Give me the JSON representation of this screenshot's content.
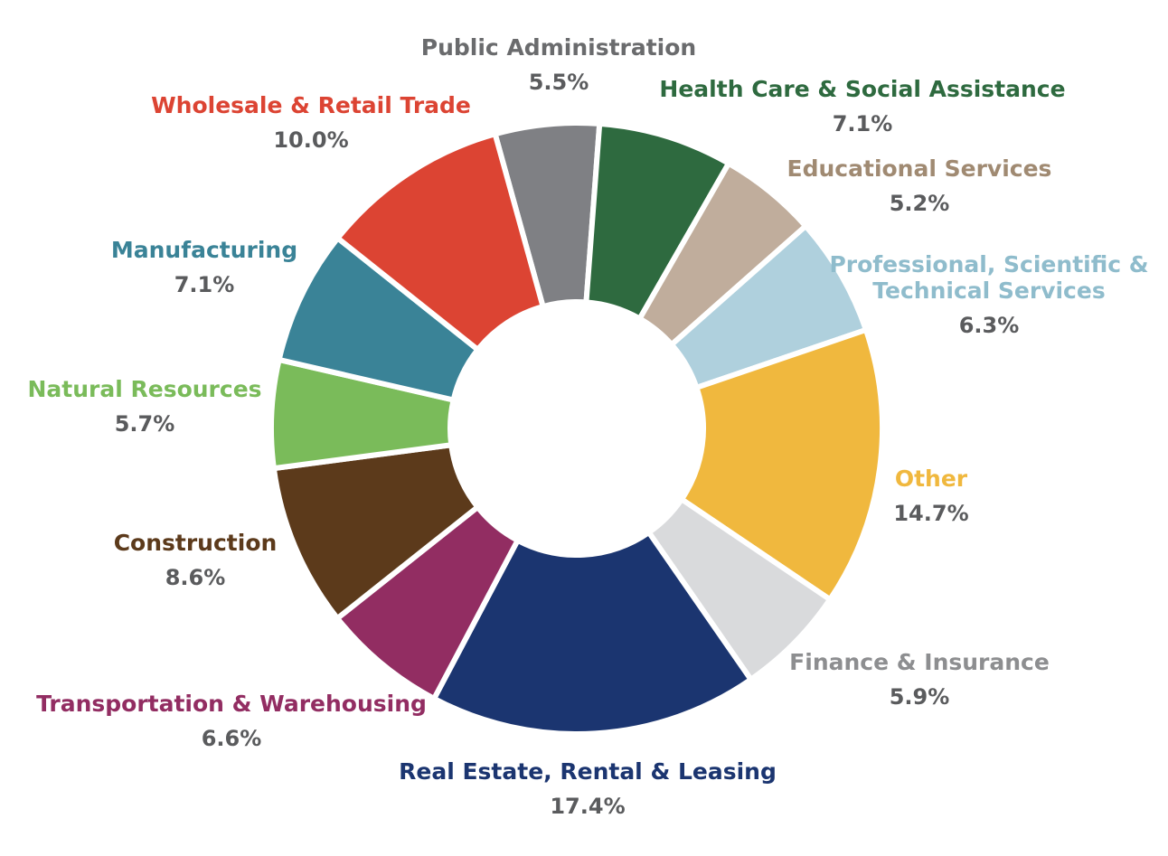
{
  "chart_data": {
    "type": "pie",
    "donut": true,
    "title": "",
    "slices": [
      {
        "label": "Public Administration",
        "value": 5.5,
        "value_label": "5.5%",
        "color": "#7f8084",
        "label_color": "#6a6b6d"
      },
      {
        "label": "Health Care & Social Assistance",
        "value": 7.1,
        "value_label": "7.1%",
        "color": "#2e6a3f",
        "label_color": "#2e6a3f"
      },
      {
        "label": "Educational Services",
        "value": 5.2,
        "value_label": "5.2%",
        "color": "#c0ad9c",
        "label_color": "#a08a72"
      },
      {
        "label_lines": [
          "Professional, Scientific &",
          "Technical Services"
        ],
        "value": 6.3,
        "value_label": "6.3%",
        "color": "#afd0dd",
        "label_color": "#8fbccc"
      },
      {
        "label": "Other",
        "value": 14.7,
        "value_label": "14.7%",
        "color": "#f0b83e",
        "label_color": "#f0b83e"
      },
      {
        "label": "Finance & Insurance",
        "value": 5.9,
        "value_label": "5.9%",
        "color": "#d9dadc",
        "label_color": "#8d8e90"
      },
      {
        "label": "Real Estate, Rental & Leasing",
        "value": 17.4,
        "value_label": "17.4%",
        "color": "#1b3570",
        "label_color": "#1b3570"
      },
      {
        "label": "Transportation & Warehousing",
        "value": 6.6,
        "value_label": "6.6%",
        "color": "#922d62",
        "label_color": "#922d62"
      },
      {
        "label": "Construction",
        "value": 8.6,
        "value_label": "8.6%",
        "color": "#5c3a1b",
        "label_color": "#5c3a1b"
      },
      {
        "label": "Natural Resources",
        "value": 5.7,
        "value_label": "5.7%",
        "color": "#7abb5a",
        "label_color": "#7abb5a"
      },
      {
        "label": "Manufacturing",
        "value": 7.1,
        "value_label": "7.1%",
        "color": "#3a8397",
        "label_color": "#3a8397"
      },
      {
        "label": "Wholesale & Retail Trade",
        "value": 10.0,
        "value_label": "10.0%",
        "color": "#dc4433",
        "label_color": "#dc4433"
      }
    ]
  }
}
